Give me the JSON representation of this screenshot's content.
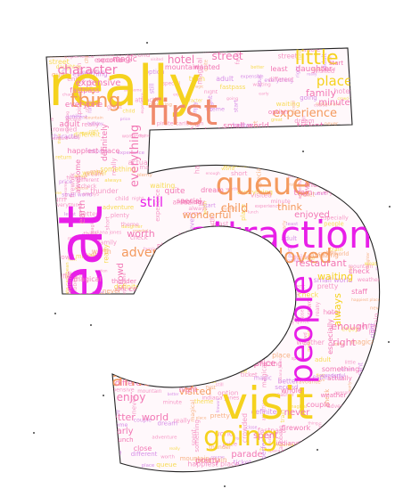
{
  "palette": {
    "magenta": "#e81ee8",
    "pink": "#f277b4",
    "orange": "#f49a5e",
    "yellow": "#f5d21e",
    "salmon": "#f08a6c",
    "lavender": "#c96be0",
    "outline": "#222222"
  },
  "icon": "five-shape-word-cloud",
  "words": [
    {
      "text": "really",
      "color": "yellow",
      "size": "xl"
    },
    {
      "text": "first",
      "color": "salmon",
      "size": "l"
    },
    {
      "text": "great",
      "color": "magenta",
      "size": "xl"
    },
    {
      "text": "attraction",
      "color": "magenta",
      "size": "xl"
    },
    {
      "text": "queue",
      "color": "orange",
      "size": "l"
    },
    {
      "text": "visit",
      "color": "yellow",
      "size": "xl"
    },
    {
      "text": "going",
      "color": "yellow",
      "size": "l"
    },
    {
      "text": "people",
      "color": "magenta",
      "size": "l"
    },
    {
      "text": "amazing",
      "color": "orange",
      "size": "m"
    },
    {
      "text": "loved",
      "color": "orange",
      "size": "m"
    },
    {
      "text": "thing",
      "color": "orange",
      "size": "m"
    },
    {
      "text": "little",
      "color": "yellow",
      "size": "m"
    },
    {
      "text": "character",
      "color": "pink",
      "size": "s"
    },
    {
      "text": "experience",
      "color": "orange",
      "size": "s"
    },
    {
      "text": "everything",
      "color": "pink",
      "size": "s"
    },
    {
      "text": "still",
      "color": "magenta",
      "size": "s"
    },
    {
      "text": "adventure",
      "color": "orange",
      "size": "s"
    },
    {
      "text": "child",
      "color": "orange",
      "size": "s"
    },
    {
      "text": "hotel",
      "color": "pink",
      "size": "s"
    },
    {
      "text": "street",
      "color": "pink",
      "size": "s"
    },
    {
      "text": "place",
      "color": "yellow",
      "size": "s"
    },
    {
      "text": "family",
      "color": "pink",
      "size": "xs"
    },
    {
      "text": "minute",
      "color": "pink",
      "size": "xs"
    },
    {
      "text": "ticket",
      "color": "pink",
      "size": "xs"
    },
    {
      "text": "fantastic",
      "color": "pink",
      "size": "xs"
    },
    {
      "text": "expensive",
      "color": "pink",
      "size": "xs"
    },
    {
      "text": "everyone",
      "color": "pink",
      "size": "xs"
    },
    {
      "text": "adult",
      "color": "pink",
      "size": "xs"
    },
    {
      "text": "definitely",
      "color": "pink",
      "size": "xs"
    },
    {
      "text": "happiest place",
      "color": "pink",
      "size": "xs"
    },
    {
      "text": "awesome",
      "color": "pink",
      "size": "xs"
    },
    {
      "text": "think",
      "color": "orange",
      "size": "xs"
    },
    {
      "text": "worth",
      "color": "pink",
      "size": "xs"
    },
    {
      "text": "quite",
      "color": "pink",
      "size": "xs"
    },
    {
      "text": "wonderful",
      "color": "orange",
      "size": "xs"
    },
    {
      "text": "enjoyed",
      "color": "pink",
      "size": "xs"
    },
    {
      "text": "train",
      "color": "pink",
      "size": "xs"
    },
    {
      "text": "restaurant",
      "color": "pink",
      "size": "xs"
    },
    {
      "text": "waiting",
      "color": "yellow",
      "size": "xs"
    },
    {
      "text": "always",
      "color": "yellow",
      "size": "xs"
    },
    {
      "text": "enough",
      "color": "pink",
      "size": "xs"
    },
    {
      "text": "right",
      "color": "pink",
      "size": "xs"
    },
    {
      "text": "crowd",
      "color": "pink",
      "size": "xs"
    },
    {
      "text": "crowded",
      "color": "pink",
      "size": "xs"
    },
    {
      "text": "space mountain",
      "color": "pink",
      "size": "xs"
    },
    {
      "text": "price",
      "color": "pink",
      "size": "xs"
    },
    {
      "text": "theme",
      "color": "pink",
      "size": "xs"
    },
    {
      "text": "different",
      "color": "pink",
      "size": "xs"
    },
    {
      "text": "enjoy",
      "color": "pink",
      "size": "xs"
    },
    {
      "text": "better",
      "color": "pink",
      "size": "xs"
    },
    {
      "text": "world",
      "color": "pink",
      "size": "xs"
    },
    {
      "text": "visited",
      "color": "orange",
      "size": "xs"
    },
    {
      "text": "never",
      "color": "pink",
      "size": "xs"
    },
    {
      "text": "spent",
      "color": "pink",
      "size": "xs"
    },
    {
      "text": "parade",
      "color": "pink",
      "size": "xs"
    },
    {
      "text": "early",
      "color": "pink",
      "size": "xs"
    },
    {
      "text": "pirate caribbean",
      "color": "pink",
      "size": "xs"
    },
    {
      "text": "night",
      "color": "pink",
      "size": "xs"
    },
    {
      "text": "earth",
      "color": "pink",
      "size": "xs"
    },
    {
      "text": "small world",
      "color": "pink",
      "size": "xs"
    },
    {
      "text": "magic",
      "color": "pink",
      "size": "xs"
    },
    {
      "text": "daughter",
      "color": "pink",
      "size": "xs"
    },
    {
      "text": "second",
      "color": "pink",
      "size": "xs"
    },
    {
      "text": "wanted",
      "color": "pink",
      "size": "xs"
    },
    {
      "text": "least",
      "color": "pink",
      "size": "xs"
    },
    {
      "text": "mountain",
      "color": "pink",
      "size": "xs"
    },
    {
      "text": "fastpass",
      "color": "pink",
      "size": "xs"
    },
    {
      "text": "favourite",
      "color": "pink",
      "size": "xs"
    },
    {
      "text": "dream",
      "color": "pink",
      "size": "xs"
    },
    {
      "text": "short",
      "color": "pink",
      "size": "xs"
    },
    {
      "text": "staff",
      "color": "pink",
      "size": "xs"
    },
    {
      "text": "check",
      "color": "pink",
      "size": "xs"
    },
    {
      "text": "perfect",
      "color": "pink",
      "size": "xs"
    },
    {
      "text": "magical",
      "color": "pink",
      "size": "xs"
    },
    {
      "text": "course",
      "color": "pink",
      "size": "xs"
    },
    {
      "text": "special",
      "color": "pink",
      "size": "xs"
    },
    {
      "text": "especially",
      "color": "pink",
      "size": "xs"
    },
    {
      "text": "something",
      "color": "pink",
      "size": "xs"
    },
    {
      "text": "actually",
      "color": "pink",
      "size": "xs"
    },
    {
      "text": "whole",
      "color": "pink",
      "size": "xs"
    },
    {
      "text": "couple",
      "color": "pink",
      "size": "xs"
    },
    {
      "text": "firework",
      "color": "pink",
      "size": "xs"
    },
    {
      "text": "indiana jones",
      "color": "pink",
      "size": "xs"
    },
    {
      "text": "pretty",
      "color": "pink",
      "size": "xs"
    },
    {
      "text": "close",
      "color": "pink",
      "size": "xs"
    },
    {
      "text": "lunch",
      "color": "pink",
      "size": "xs"
    },
    {
      "text": "start",
      "color": "pink",
      "size": "xs"
    },
    {
      "text": "return",
      "color": "pink",
      "size": "xs"
    },
    {
      "text": "plenty",
      "color": "pink",
      "size": "xs"
    },
    {
      "text": "holiday",
      "color": "pink",
      "size": "xs"
    },
    {
      "text": "weather",
      "color": "pink",
      "size": "xs"
    },
    {
      "text": "thunder",
      "color": "pink",
      "size": "xs"
    },
    {
      "text": "option",
      "color": "pink",
      "size": "xs"
    }
  ]
}
